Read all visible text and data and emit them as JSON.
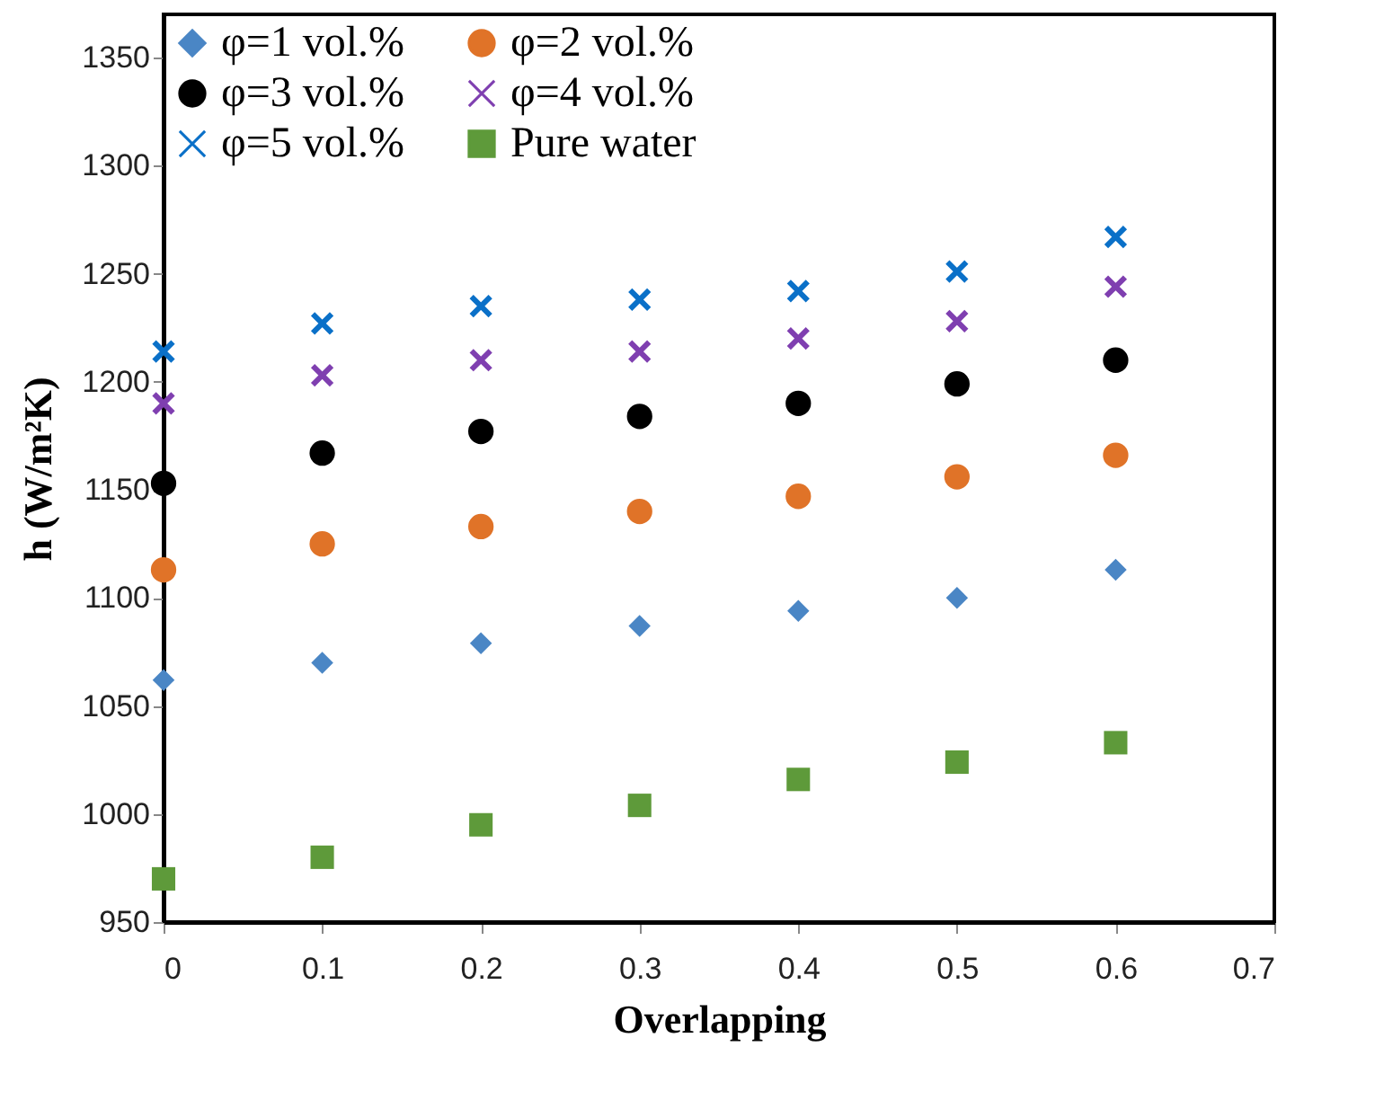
{
  "chart_data": {
    "type": "scatter",
    "xlabel": "Overlapping",
    "ylabel": "h (W/m²K)",
    "x": [
      0,
      0.1,
      0.2,
      0.3,
      0.4,
      0.5,
      0.6
    ],
    "xlim": [
      0,
      0.7
    ],
    "xticks": [
      0,
      0.1,
      0.2,
      0.3,
      0.4,
      0.5,
      0.6,
      0.7
    ],
    "ylim": [
      950,
      1370
    ],
    "yticks": [
      950,
      1000,
      1050,
      1100,
      1150,
      1200,
      1250,
      1300,
      1350
    ],
    "grid": false,
    "legend": "top left",
    "series": [
      {
        "name": "φ=1 vol.%",
        "color": "#4a86c5",
        "marker": "diamond",
        "values": [
          1062,
          1070,
          1079,
          1087,
          1094,
          1100,
          1113
        ]
      },
      {
        "name": "φ=2 vol.%",
        "color": "#e07328",
        "marker": "circle",
        "values": [
          1113,
          1125,
          1133,
          1140,
          1147,
          1156,
          1166
        ]
      },
      {
        "name": "φ=3 vol.%",
        "color": "#000000",
        "marker": "circle",
        "values": [
          1153,
          1167,
          1177,
          1184,
          1190,
          1199,
          1210
        ]
      },
      {
        "name": "φ=4 vol.%",
        "color": "#7f3fb0",
        "marker": "cross",
        "values": [
          1190,
          1203,
          1210,
          1214,
          1220,
          1228,
          1244
        ]
      },
      {
        "name": "φ=5 vol.%",
        "color": "#0a70c8",
        "marker": "cross",
        "values": [
          1214,
          1227,
          1235,
          1238,
          1242,
          1251,
          1267
        ]
      },
      {
        "name": "Pure water",
        "color": "#5e9a3a",
        "marker": "square",
        "values": [
          970,
          980,
          995,
          1004,
          1016,
          1024,
          1033
        ]
      }
    ]
  }
}
